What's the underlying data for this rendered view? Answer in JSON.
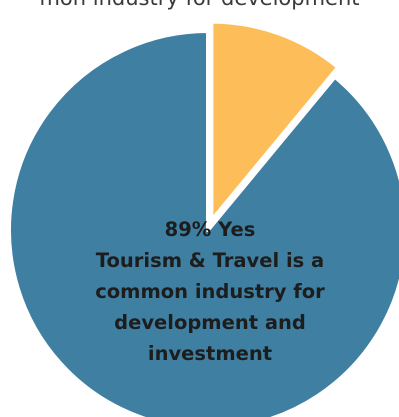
{
  "title": "mon industry for development",
  "chart_data": {
    "type": "pie",
    "slices": [
      {
        "label": "Yes",
        "value": 89,
        "color": "#3f7fa2"
      },
      {
        "label": "",
        "value": 11,
        "color": "#fdbd58"
      }
    ],
    "center_label": {
      "headline": "89% Yes",
      "lines": [
        "Tourism & Travel is a",
        "common industry for",
        "development and",
        "investment"
      ]
    }
  }
}
